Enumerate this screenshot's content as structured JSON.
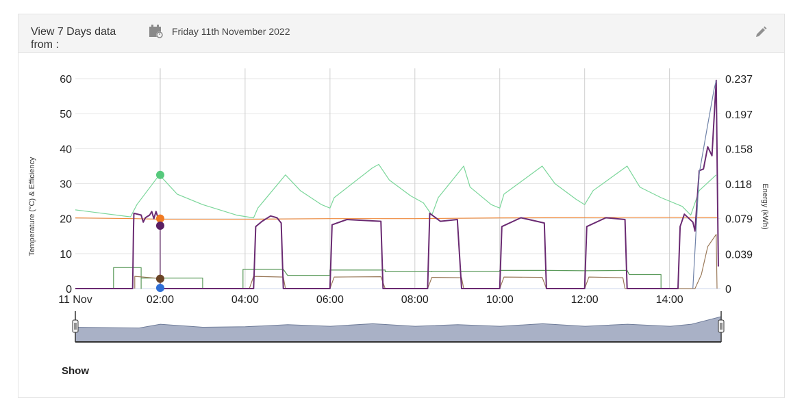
{
  "header": {
    "title": "View 7 Days data from :",
    "date_label": "Friday 11th November 2022",
    "calendar_icon": "calendar-icon",
    "edit_icon": "pencil-icon"
  },
  "show_label": "Show",
  "chart_data": {
    "type": "line",
    "ylabel_left": "Temperature (°C) & Efficiency",
    "ylabel_right": "Energy (kWh)",
    "y_left_ticks": [
      "0",
      "10",
      "20",
      "30",
      "40",
      "50",
      "60"
    ],
    "y_right_ticks": [
      "0",
      "0.039",
      "0.079",
      "0.118",
      "0.158",
      "0.197",
      "0.237"
    ],
    "ylim_left": [
      0,
      60
    ],
    "ylim_right": [
      0,
      0.237
    ],
    "xlim_hours": [
      0,
      15.2
    ],
    "x_ticks": [
      {
        "h": 0,
        "label": "11 Nov"
      },
      {
        "h": 2,
        "label": "02:00"
      },
      {
        "h": 4,
        "label": "04:00"
      },
      {
        "h": 6,
        "label": "06:00"
      },
      {
        "h": 8,
        "label": "08:00"
      },
      {
        "h": 10,
        "label": "10:00"
      },
      {
        "h": 12,
        "label": "12:00"
      },
      {
        "h": 14,
        "label": "14:00"
      }
    ],
    "crosshair_hour": 2,
    "series": [
      {
        "color": "#7bd69a",
        "axis": "left",
        "values": [
          [
            0,
            22.5
          ],
          [
            1.3,
            20.5
          ],
          [
            1.45,
            24
          ],
          [
            1.98,
            32.5
          ],
          [
            2.4,
            27
          ],
          [
            3,
            24
          ],
          [
            3.8,
            21
          ],
          [
            4.2,
            20.2
          ],
          [
            4.3,
            23
          ],
          [
            4.95,
            32.5
          ],
          [
            5.3,
            28
          ],
          [
            5.8,
            24
          ],
          [
            6,
            23
          ],
          [
            6.1,
            26
          ],
          [
            7.0,
            34.5
          ],
          [
            7.15,
            35.5
          ],
          [
            7.4,
            31
          ],
          [
            7.9,
            26.5
          ],
          [
            8.2,
            24.5
          ],
          [
            8.4,
            21
          ],
          [
            8.55,
            26
          ],
          [
            9.15,
            35
          ],
          [
            9.3,
            29
          ],
          [
            9.8,
            24
          ],
          [
            10,
            23
          ],
          [
            10.1,
            27
          ],
          [
            11.0,
            35
          ],
          [
            11.3,
            30
          ],
          [
            11.8,
            25.5
          ],
          [
            12,
            24
          ],
          [
            12.2,
            28
          ],
          [
            13.0,
            35
          ],
          [
            13.3,
            29
          ],
          [
            13.8,
            26
          ],
          [
            14.3,
            23.5
          ],
          [
            14.5,
            21
          ],
          [
            14.7,
            28
          ],
          [
            15.1,
            32.5
          ]
        ]
      },
      {
        "color": "#f08a3c",
        "axis": "left",
        "values": [
          [
            0,
            20.2
          ],
          [
            1.4,
            20
          ],
          [
            2,
            19.8
          ],
          [
            4,
            19.8
          ],
          [
            6,
            20
          ],
          [
            8,
            20
          ],
          [
            10,
            20.2
          ],
          [
            12,
            20.3
          ],
          [
            14,
            20.4
          ],
          [
            15.15,
            20.3
          ]
        ]
      },
      {
        "color": "#5a9a5a",
        "axis": "left",
        "values": [
          [
            0.9,
            0
          ],
          [
            0.9,
            6
          ],
          [
            1.55,
            6
          ],
          [
            1.55,
            0
          ],
          [
            1.55,
            3
          ],
          [
            3,
            3
          ],
          [
            3,
            0
          ],
          [
            3.95,
            0
          ],
          [
            3.95,
            5.5
          ],
          [
            4.9,
            5.5
          ],
          [
            5,
            3.8
          ],
          [
            6.0,
            3.8
          ],
          [
            6.0,
            5.3
          ],
          [
            7.3,
            5.3
          ],
          [
            7.3,
            4.8
          ],
          [
            8.4,
            4.8
          ],
          [
            8.4,
            4.9
          ],
          [
            9.0,
            4.9
          ],
          [
            9.15,
            4.9
          ],
          [
            10.0,
            4.9
          ],
          [
            10.0,
            5.2
          ],
          [
            11.1,
            5.2
          ],
          [
            12.0,
            5.1
          ],
          [
            13.0,
            5.2
          ],
          [
            13.05,
            4
          ],
          [
            13.8,
            4
          ],
          [
            13.8,
            0
          ]
        ]
      },
      {
        "color": "#9b7a5a",
        "axis": "left",
        "values": [
          [
            1.4,
            0
          ],
          [
            1.4,
            3.5
          ],
          [
            2,
            2.9
          ],
          [
            2,
            0
          ],
          [
            4.1,
            0
          ],
          [
            4.2,
            3.5
          ],
          [
            4.9,
            3.3
          ],
          [
            4.95,
            0
          ],
          [
            6.0,
            0
          ],
          [
            6.1,
            3.3
          ],
          [
            7.2,
            3.4
          ],
          [
            7.3,
            0
          ],
          [
            8.3,
            0
          ],
          [
            8.4,
            3.2
          ],
          [
            9.1,
            3.1
          ],
          [
            9.15,
            0
          ],
          [
            10.0,
            0
          ],
          [
            10.1,
            3.3
          ],
          [
            11.0,
            3.2
          ],
          [
            11.1,
            0
          ],
          [
            12.0,
            0
          ],
          [
            12.1,
            3.3
          ],
          [
            12.9,
            3.1
          ],
          [
            12.95,
            0
          ],
          [
            14.6,
            0
          ],
          [
            14.75,
            4
          ],
          [
            14.9,
            12
          ],
          [
            15.1,
            15.5
          ],
          [
            15.12,
            0
          ]
        ]
      },
      {
        "color": "#6a2a72",
        "axis": "right",
        "values": [
          [
            0,
            0
          ],
          [
            1.35,
            0
          ],
          [
            1.37,
            0.065
          ],
          [
            1.38,
            0.085
          ],
          [
            1.55,
            0.083
          ],
          [
            1.6,
            0.075
          ],
          [
            1.65,
            0.08
          ],
          [
            1.75,
            0.083
          ],
          [
            1.8,
            0.087
          ],
          [
            1.85,
            0.079
          ],
          [
            1.9,
            0.087
          ],
          [
            1.95,
            0.08
          ],
          [
            2.0,
            0.072
          ],
          [
            2.0,
            0
          ],
          [
            4.2,
            0
          ],
          [
            4.25,
            0.07
          ],
          [
            4.4,
            0.076
          ],
          [
            4.6,
            0.082
          ],
          [
            4.75,
            0.08
          ],
          [
            4.85,
            0.074
          ],
          [
            4.9,
            0
          ],
          [
            6.0,
            0
          ],
          [
            6.05,
            0.072
          ],
          [
            6.4,
            0.078
          ],
          [
            7.2,
            0.076
          ],
          [
            7.25,
            0
          ],
          [
            8.3,
            0
          ],
          [
            8.35,
            0.085
          ],
          [
            8.6,
            0.076
          ],
          [
            9.0,
            0.078
          ],
          [
            9.1,
            0
          ],
          [
            10.0,
            0
          ],
          [
            10.05,
            0.07
          ],
          [
            10.5,
            0.08
          ],
          [
            11.05,
            0.074
          ],
          [
            11.1,
            0
          ],
          [
            12.0,
            0
          ],
          [
            12.05,
            0.07
          ],
          [
            12.5,
            0.08
          ],
          [
            12.95,
            0.078
          ],
          [
            13.0,
            0
          ],
          [
            14.2,
            0
          ],
          [
            14.25,
            0.07
          ],
          [
            14.35,
            0.084
          ],
          [
            14.55,
            0.075
          ],
          [
            14.6,
            0.065
          ],
          [
            14.7,
            0.133
          ],
          [
            14.8,
            0.135
          ],
          [
            14.9,
            0.16
          ],
          [
            15.0,
            0.15
          ],
          [
            15.1,
            0.235
          ],
          [
            15.15,
            0.025
          ]
        ]
      },
      {
        "color": "#6f82a8",
        "axis": "right",
        "values": [
          [
            14.55,
            0
          ],
          [
            14.7,
            0.13
          ],
          [
            14.9,
            0.185
          ],
          [
            15.05,
            0.225
          ],
          [
            15.1,
            0.235
          ]
        ]
      }
    ],
    "markers": [
      {
        "hour": 2,
        "value": 32.5,
        "axis": "left",
        "color": "#56c97c"
      },
      {
        "hour": 2,
        "value": 20,
        "axis": "left",
        "color": "#f07a22"
      },
      {
        "hour": 2,
        "value": 0.071,
        "axis": "right",
        "color": "#5a1f63"
      },
      {
        "hour": 2,
        "value": 2.8,
        "axis": "left",
        "color": "#6b4426"
      },
      {
        "hour": 2,
        "value": 0.2,
        "axis": "left",
        "color": "#2f6fd6"
      }
    ],
    "navigator": {
      "values": [
        [
          0,
          0.58
        ],
        [
          1.5,
          0.55
        ],
        [
          2,
          0.7
        ],
        [
          3,
          0.58
        ],
        [
          4,
          0.6
        ],
        [
          5,
          0.68
        ],
        [
          6,
          0.62
        ],
        [
          7,
          0.72
        ],
        [
          8,
          0.62
        ],
        [
          9,
          0.68
        ],
        [
          10,
          0.62
        ],
        [
          11,
          0.72
        ],
        [
          12,
          0.62
        ],
        [
          13,
          0.7
        ],
        [
          14,
          0.62
        ],
        [
          14.5,
          0.7
        ],
        [
          15.2,
          1.0
        ]
      ]
    }
  }
}
